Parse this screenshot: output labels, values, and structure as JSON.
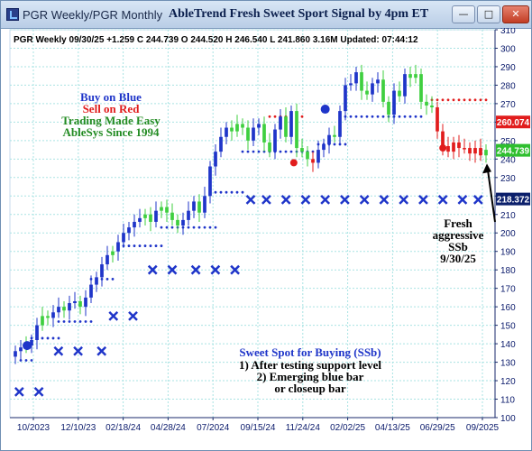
{
  "window": {
    "title": "PGR Weekly/PGR Monthly",
    "header": "AbleTrend Fresh Sweet Sport Signal by 4pm ET",
    "buttons": {
      "minimize": "—",
      "maximize": "□",
      "close": "✕"
    }
  },
  "info_line": "PGR  Weekly 09/30/25 +1.259 C 244.739 O 244.520 H 246.540 L 241.860 3.16M Updated: 07:44:12",
  "legend_text": {
    "line1": "Buy on Blue",
    "line2": "Sell on Red",
    "line3": "Trading Made Easy",
    "line4": "AbleSys Since 1994"
  },
  "annotations": {
    "ssb_title": "Sweet Spot for Buying (SSb)",
    "ssb_line1": "1) After testing support level",
    "ssb_line2": "2) Emerging blue bar",
    "ssb_line3": "or closeup bar",
    "fresh_line1": "Fresh",
    "fresh_line2": "aggressive",
    "fresh_line3": "SSb",
    "fresh_line4": "9/30/25"
  },
  "colors": {
    "up": "#1f35c9",
    "down": "#e11d1d",
    "neutral": "#3fcf3f",
    "grid": "#a9e3e3",
    "axis_text": "#0a1a6b",
    "price_tag_red": "#e11d1d",
    "price_tag_green": "#2fbf2f",
    "price_tag_navy": "#0b1f6b"
  },
  "chart_data": {
    "type": "candlestick",
    "ylim": [
      100,
      310
    ],
    "yticks": [
      100,
      110,
      120,
      130,
      140,
      150,
      160,
      170,
      180,
      190,
      200,
      210,
      220,
      230,
      240,
      250,
      260,
      270,
      280,
      290,
      300,
      310
    ],
    "x_tick_labels": [
      "10/2023",
      "12/10/23",
      "02/18/24",
      "04/28/24",
      "07/2024",
      "09/15/24",
      "11/24/24",
      "02/02/25",
      "04/13/25",
      "06/29/25",
      "09/2025"
    ],
    "price_tags": [
      {
        "value": 260.074,
        "label": "260.074",
        "color": "#e11d1d"
      },
      {
        "value": 244.739,
        "label": "244.739",
        "color": "#2fbf2f"
      },
      {
        "value": 218.372,
        "label": "218.372",
        "color": "#0b1f6b"
      }
    ],
    "closes": [
      136,
      138,
      139,
      142,
      150,
      155,
      154,
      157,
      160,
      158,
      162,
      163,
      160,
      165,
      172,
      176,
      183,
      188,
      190,
      195,
      200,
      203,
      206,
      208,
      210,
      206,
      212,
      214,
      211,
      207,
      204,
      207,
      212,
      217,
      211,
      220,
      236,
      244,
      252,
      257,
      255,
      259,
      257,
      250,
      257,
      259,
      249,
      244,
      256,
      263,
      252,
      266,
      246,
      244,
      240,
      238,
      245,
      248,
      253,
      252,
      266,
      280,
      281,
      287,
      277,
      275,
      281,
      283,
      271,
      264,
      277,
      274,
      286,
      284,
      286,
      271,
      269,
      268,
      255,
      247,
      244,
      249,
      246,
      246,
      243,
      246,
      242,
      245
    ],
    "directions": [
      "U",
      "U",
      "G",
      "U",
      "U",
      "G",
      "G",
      "U",
      "U",
      "G",
      "U",
      "U",
      "G",
      "U",
      "U",
      "U",
      "U",
      "U",
      "G",
      "U",
      "U",
      "U",
      "U",
      "U",
      "G",
      "G",
      "U",
      "G",
      "G",
      "G",
      "G",
      "U",
      "U",
      "U",
      "G",
      "U",
      "U",
      "U",
      "U",
      "U",
      "G",
      "G",
      "G",
      "G",
      "U",
      "U",
      "G",
      "G",
      "U",
      "U",
      "G",
      "U",
      "G",
      "G",
      "G",
      "D",
      "U",
      "U",
      "U",
      "G",
      "U",
      "U",
      "U",
      "U",
      "G",
      "G",
      "U",
      "U",
      "G",
      "G",
      "U",
      "G",
      "U",
      "G",
      "G",
      "G",
      "G",
      "G",
      "D",
      "D",
      "D",
      "D",
      "D",
      "D",
      "D",
      "D",
      "D",
      "G"
    ],
    "stop_dots_low": [
      {
        "from": 1,
        "to": 3,
        "value": 131
      },
      {
        "from": 3,
        "to": 8,
        "value": 143
      },
      {
        "from": 8,
        "to": 14,
        "value": 152
      },
      {
        "from": 14,
        "to": 18,
        "value": 175
      },
      {
        "from": 19,
        "to": 27,
        "value": 193
      },
      {
        "from": 27,
        "to": 37,
        "value": 203
      },
      {
        "from": 37,
        "to": 42,
        "value": 222
      },
      {
        "from": 42,
        "to": 56,
        "value": 244
      },
      {
        "from": 56,
        "to": 61,
        "value": 248
      },
      {
        "from": 61,
        "to": 75,
        "value": 263
      }
    ],
    "stop_dots_high": [
      {
        "from": 47,
        "to": 53,
        "value": 263
      },
      {
        "from": 77,
        "to": 87,
        "value": 272
      }
    ],
    "x_marks": [
      {
        "i": 1,
        "value": 114
      },
      {
        "i": 6,
        "value": 114
      },
      {
        "i": 11,
        "value": 136
      },
      {
        "i": 16,
        "value": 136
      },
      {
        "i": 22,
        "value": 136
      },
      {
        "i": 25,
        "value": 155
      },
      {
        "i": 30,
        "value": 155
      },
      {
        "i": 35,
        "value": 180
      },
      {
        "i": 40,
        "value": 180
      },
      {
        "i": 46,
        "value": 180
      },
      {
        "i": 51,
        "value": 180
      },
      {
        "i": 56,
        "value": 180
      },
      {
        "i": 60,
        "value": 218
      },
      {
        "i": 64,
        "value": 218
      },
      {
        "i": 69,
        "value": 218
      },
      {
        "i": 74,
        "value": 218
      },
      {
        "i": 79,
        "value": 218
      },
      {
        "i": 84,
        "value": 218
      },
      {
        "i": 89,
        "value": 218
      },
      {
        "i": 94,
        "value": 218
      },
      {
        "i": 99,
        "value": 218
      },
      {
        "i": 104,
        "value": 218
      },
      {
        "i": 109,
        "value": 218
      },
      {
        "i": 114,
        "value": 218
      },
      {
        "i": 118,
        "value": 218
      }
    ],
    "signal_circles": [
      {
        "i": 3,
        "value": 139,
        "color": "#1f35c9"
      },
      {
        "i": 79,
        "value": 267,
        "color": "#1f35c9"
      },
      {
        "i": 71,
        "value": 238,
        "color": "#e11d1d"
      },
      {
        "i": 109,
        "value": 246,
        "color": "#e11d1d"
      }
    ]
  }
}
